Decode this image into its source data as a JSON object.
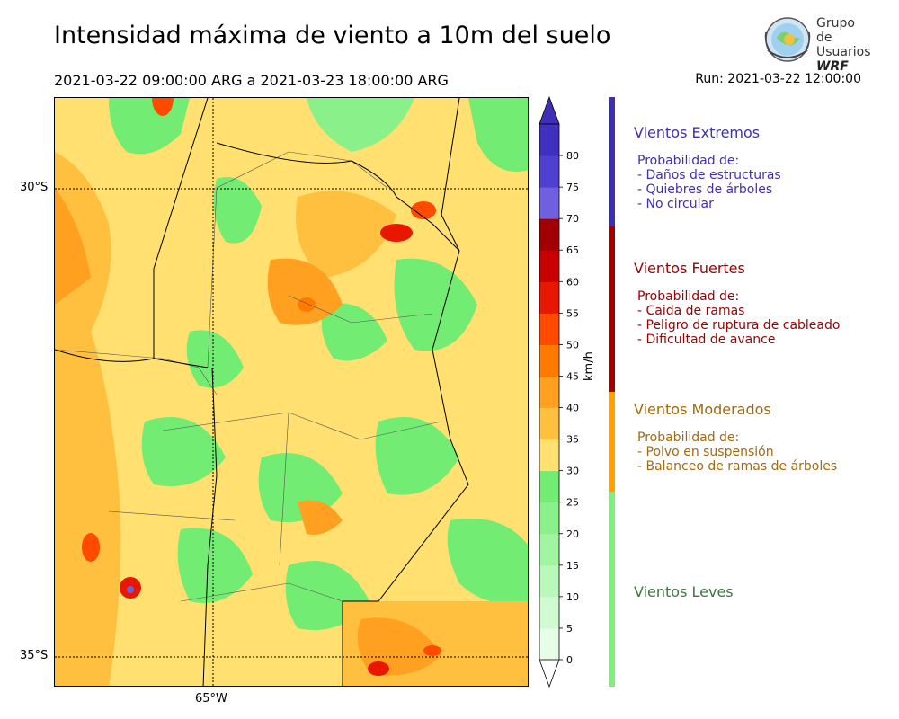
{
  "title": "Intensidad máxima de viento a 10m del suelo",
  "period": "2021-03-22 09:00:00 ARG  a  2021-03-23 18:00:00 ARG",
  "run": "Run: 2021-03-22 12:00:00",
  "logo": {
    "line1": "Grupo de",
    "line2": "Usuarios",
    "line3": "WRF"
  },
  "map": {
    "lat_labels": [
      "30°S",
      "35°S"
    ],
    "lon_labels": [
      "65°W"
    ]
  },
  "colorbar": {
    "unit": "km/h",
    "ticks": [
      "0",
      "5",
      "10",
      "15",
      "20",
      "25",
      "30",
      "35",
      "40",
      "45",
      "50",
      "55",
      "60",
      "65",
      "70",
      "75",
      "80"
    ],
    "colors": [
      "#e6fde6",
      "#d0fbd0",
      "#b8f8b8",
      "#a0f5a0",
      "#8af08a",
      "#72ec72",
      "#ffe070",
      "#ffc040",
      "#ffa020",
      "#ff7a00",
      "#ff4a00",
      "#e81800",
      "#c80000",
      "#a00000",
      "#7060e0",
      "#5040d0",
      "#4030c0"
    ],
    "extend_color": "#3f2fb8"
  },
  "categories": [
    {
      "title": "Vientos Extremos",
      "color": "#4030b0",
      "lines": [
        "Probabilidad de:",
        "- Daños de estructuras",
        "- Quiebres de árboles",
        "- No circular"
      ]
    },
    {
      "title": "Vientos Fuertes",
      "color": "#9a0000",
      "lines": [
        "Probabilidad de:",
        "- Caida de ramas",
        "- Peligro de ruptura de cableado",
        "- Dificultad de avance"
      ]
    },
    {
      "title": "Vientos Moderados",
      "color": "#a06a10",
      "lines": [
        "Probabilidad de:",
        "- Polvo en suspensión",
        "- Balanceo de ramas de árboles"
      ]
    },
    {
      "title": "Vientos Leves",
      "color": "#3a7a3a",
      "lines": []
    }
  ],
  "bar_colors": [
    "#3c2fb0",
    "#a00000",
    "#ff9f00",
    "#7ff07f"
  ]
}
